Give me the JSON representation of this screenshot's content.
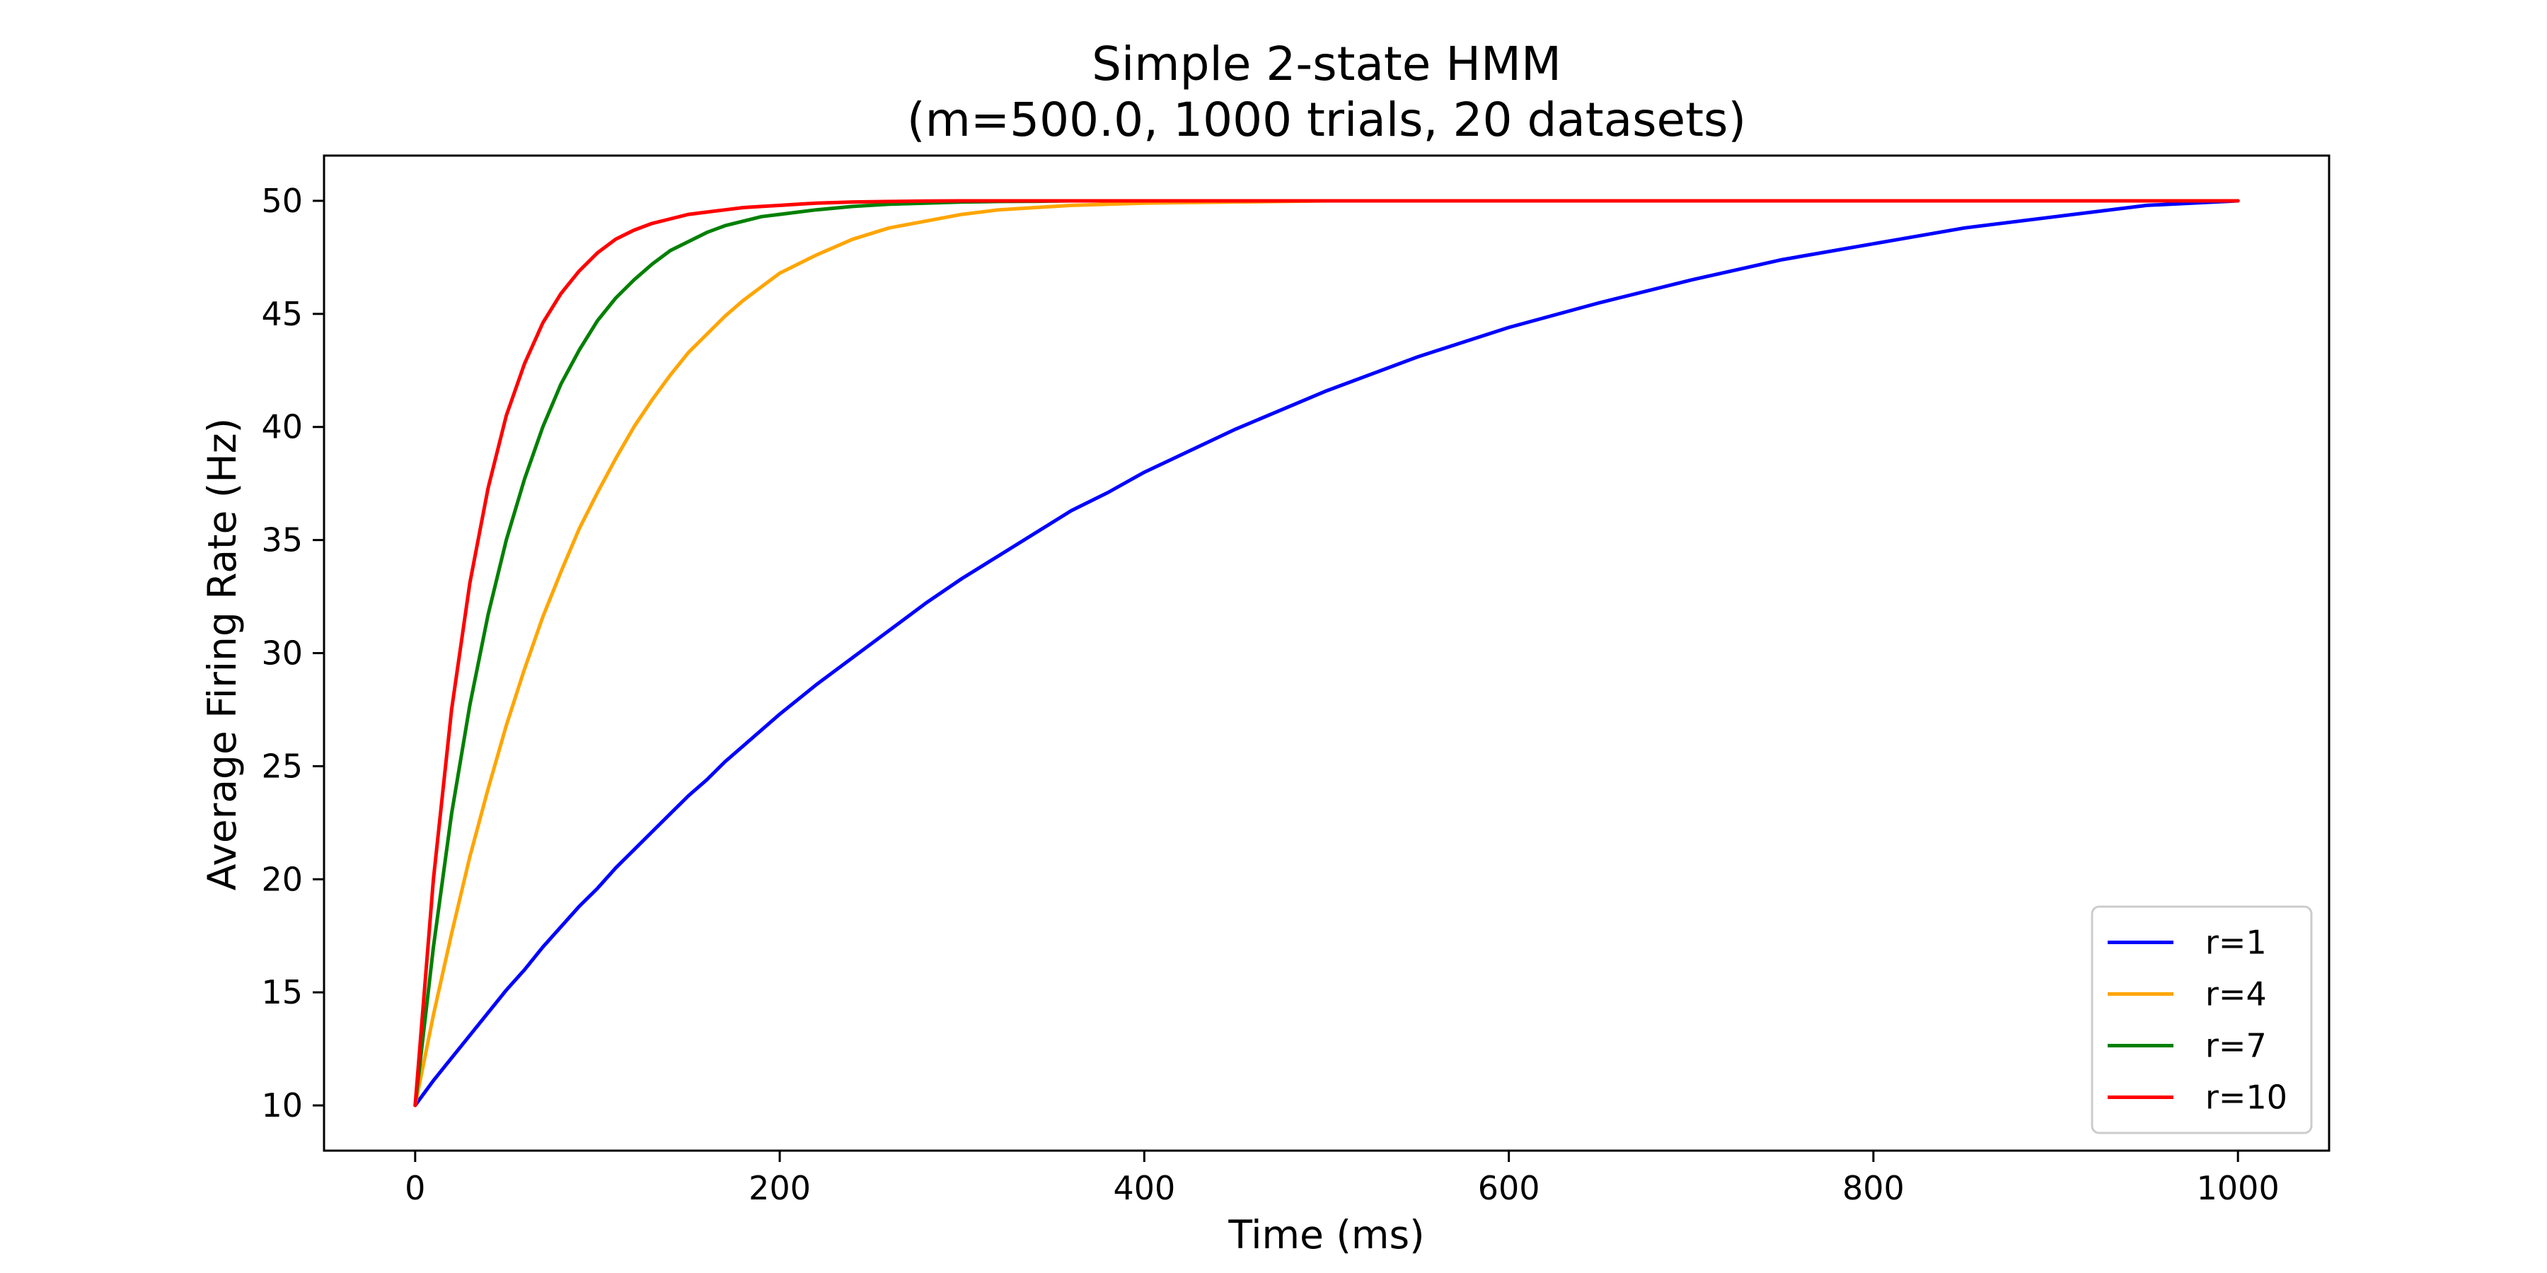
{
  "chart_data": {
    "type": "line",
    "title": "Simple 2-state HMM",
    "subtitle": "(m=500.0, 1000 trials, 20 datasets)",
    "xlabel": "Time (ms)",
    "ylabel": "Average Firing Rate (Hz)",
    "xlim": [
      -50,
      1050
    ],
    "ylim": [
      8,
      52
    ],
    "xticks": [
      0,
      200,
      400,
      600,
      800,
      1000
    ],
    "yticks": [
      10,
      15,
      20,
      25,
      30,
      35,
      40,
      45,
      50
    ],
    "grid": false,
    "legend_position": "bottom-right",
    "x": [
      0,
      10,
      20,
      30,
      40,
      50,
      60,
      70,
      80,
      90,
      100,
      110,
      120,
      130,
      140,
      150,
      160,
      170,
      180,
      190,
      200,
      220,
      240,
      260,
      280,
      300,
      320,
      340,
      360,
      380,
      400,
      450,
      500,
      550,
      600,
      650,
      700,
      750,
      800,
      850,
      900,
      950,
      1000
    ],
    "series": [
      {
        "name": "r=1",
        "color": "#0000ff",
        "values": [
          10.0,
          11.1,
          12.1,
          13.1,
          14.1,
          15.1,
          16.0,
          17.0,
          17.9,
          18.8,
          19.6,
          20.5,
          21.3,
          22.1,
          22.9,
          23.7,
          24.4,
          25.2,
          25.9,
          26.6,
          27.3,
          28.6,
          29.8,
          31.0,
          32.2,
          33.3,
          34.3,
          35.3,
          36.3,
          37.1,
          38.0,
          39.9,
          41.6,
          43.1,
          44.4,
          45.5,
          46.5,
          47.4,
          48.1,
          48.8,
          49.3,
          49.8,
          50.0
        ]
      },
      {
        "name": "r=4",
        "color": "#ffa500",
        "values": [
          10.0,
          14.0,
          17.6,
          21.0,
          24.0,
          26.8,
          29.3,
          31.6,
          33.6,
          35.5,
          37.1,
          38.6,
          40.0,
          41.2,
          42.3,
          43.3,
          44.1,
          44.9,
          45.6,
          46.2,
          46.8,
          47.6,
          48.3,
          48.8,
          49.1,
          49.4,
          49.6,
          49.7,
          49.8,
          49.85,
          49.9,
          49.95,
          50.0,
          50.0,
          50.0,
          50.0,
          50.0,
          50.0,
          50.0,
          50.0,
          50.0,
          50.0,
          50.0
        ]
      },
      {
        "name": "r=7",
        "color": "#008000",
        "values": [
          10.0,
          17.0,
          22.9,
          27.7,
          31.7,
          35.0,
          37.7,
          40.0,
          41.9,
          43.4,
          44.7,
          45.7,
          46.5,
          47.2,
          47.8,
          48.2,
          48.6,
          48.9,
          49.1,
          49.3,
          49.4,
          49.6,
          49.75,
          49.85,
          49.9,
          49.95,
          49.97,
          49.98,
          50.0,
          50.0,
          50.0,
          50.0,
          50.0,
          50.0,
          50.0,
          50.0,
          50.0,
          50.0,
          50.0,
          50.0,
          50.0,
          50.0,
          50.0
        ]
      },
      {
        "name": "r=10",
        "color": "#ff0000",
        "values": [
          10.0,
          20.0,
          27.5,
          33.1,
          37.3,
          40.5,
          42.8,
          44.6,
          45.9,
          46.9,
          47.7,
          48.3,
          48.7,
          49.0,
          49.2,
          49.4,
          49.5,
          49.6,
          49.7,
          49.75,
          49.8,
          49.9,
          49.95,
          49.97,
          49.99,
          50.0,
          50.0,
          50.0,
          50.0,
          50.0,
          50.0,
          50.0,
          50.0,
          50.0,
          50.0,
          50.0,
          50.0,
          50.0,
          50.0,
          50.0,
          50.0,
          50.0,
          50.0
        ]
      }
    ]
  }
}
